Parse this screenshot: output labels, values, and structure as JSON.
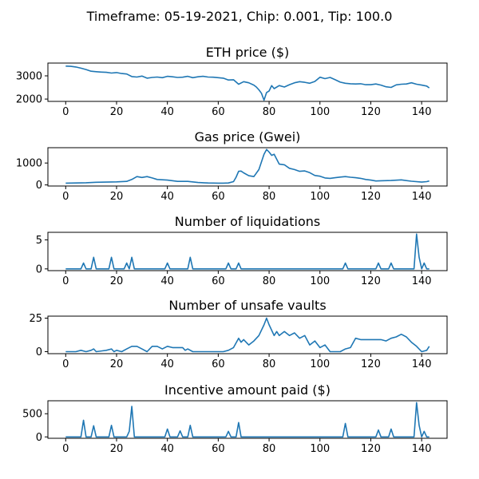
{
  "suptitle": "Timeframe: 05-19-2021, Chip: 0.001, Tip: 100.0",
  "colors": {
    "line": "#1f77b4",
    "axes": "#000000",
    "background": "#ffffff"
  },
  "chart_data": [
    {
      "type": "line",
      "title": "ETH price ($)",
      "xlim": [
        -7,
        150
      ],
      "ylim": [
        1900,
        3550
      ],
      "xticks": [
        0,
        20,
        40,
        60,
        80,
        100,
        120,
        140
      ],
      "yticks": [
        2000,
        3000
      ],
      "x": [
        0,
        2,
        4,
        6,
        8,
        10,
        12,
        14,
        16,
        18,
        20,
        22,
        24,
        26,
        28,
        30,
        32,
        34,
        36,
        38,
        40,
        42,
        44,
        46,
        48,
        50,
        52,
        54,
        56,
        58,
        60,
        62,
        64,
        66,
        68,
        70,
        72,
        74,
        75,
        76,
        77,
        78,
        79,
        80,
        81,
        82,
        84,
        86,
        88,
        90,
        92,
        94,
        96,
        98,
        100,
        102,
        104,
        106,
        108,
        110,
        112,
        114,
        116,
        118,
        120,
        122,
        124,
        126,
        128,
        130,
        132,
        134,
        136,
        138,
        140,
        142,
        143
      ],
      "values": [
        3420,
        3410,
        3380,
        3330,
        3270,
        3200,
        3180,
        3160,
        3150,
        3120,
        3140,
        3100,
        3080,
        2970,
        2950,
        2990,
        2900,
        2930,
        2950,
        2920,
        2980,
        2960,
        2930,
        2940,
        2980,
        2920,
        2960,
        2980,
        2950,
        2940,
        2920,
        2900,
        2820,
        2830,
        2640,
        2750,
        2700,
        2600,
        2520,
        2400,
        2250,
        1950,
        2280,
        2350,
        2580,
        2450,
        2580,
        2520,
        2620,
        2700,
        2750,
        2720,
        2680,
        2760,
        2940,
        2880,
        2930,
        2830,
        2730,
        2680,
        2660,
        2650,
        2660,
        2620,
        2620,
        2650,
        2600,
        2530,
        2500,
        2610,
        2640,
        2650,
        2700,
        2640,
        2600,
        2560,
        2480
      ]
    },
    {
      "type": "line",
      "title": "Gas price (Gwei)",
      "xlim": [
        -7,
        150
      ],
      "ylim": [
        -50,
        1700
      ],
      "xticks": [
        0,
        20,
        40,
        60,
        80,
        100,
        120,
        140
      ],
      "yticks": [
        0,
        1000
      ],
      "x": [
        0,
        4,
        8,
        12,
        16,
        20,
        24,
        26,
        28,
        30,
        32,
        34,
        36,
        40,
        44,
        48,
        52,
        56,
        60,
        62,
        64,
        66,
        67,
        68,
        69,
        70,
        72,
        74,
        76,
        78,
        79,
        80,
        81,
        82,
        84,
        86,
        88,
        90,
        92,
        94,
        96,
        98,
        100,
        102,
        104,
        106,
        108,
        110,
        112,
        114,
        116,
        118,
        120,
        122,
        124,
        128,
        132,
        136,
        140,
        142,
        143
      ],
      "values": [
        80,
        90,
        100,
        120,
        130,
        140,
        160,
        250,
        380,
        340,
        380,
        320,
        250,
        220,
        160,
        160,
        110,
        90,
        80,
        80,
        90,
        150,
        350,
        620,
        630,
        550,
        420,
        380,
        700,
        1400,
        1620,
        1500,
        1350,
        1400,
        950,
        920,
        760,
        700,
        620,
        640,
        560,
        430,
        400,
        320,
        300,
        330,
        360,
        380,
        350,
        330,
        300,
        250,
        220,
        180,
        190,
        200,
        230,
        170,
        130,
        150,
        180
      ]
    },
    {
      "type": "line",
      "title": "Number of liquidations",
      "xlim": [
        -7,
        150
      ],
      "ylim": [
        -0.3,
        6.3
      ],
      "xticks": [
        0,
        20,
        40,
        60,
        80,
        100,
        120,
        140
      ],
      "yticks": [
        0,
        5
      ],
      "x": [
        0,
        6,
        7,
        8,
        10,
        11,
        12,
        17,
        18,
        19,
        23,
        24,
        25,
        26,
        27,
        39,
        40,
        41,
        48,
        49,
        50,
        63,
        64,
        65,
        67,
        68,
        69,
        109,
        110,
        111,
        122,
        123,
        124,
        127,
        128,
        129,
        137,
        138,
        139,
        140,
        141,
        142,
        143
      ],
      "values": [
        0,
        0,
        1,
        0,
        0,
        2,
        0,
        0,
        2,
        0,
        0,
        1,
        0,
        2,
        0,
        0,
        1,
        0,
        0,
        2,
        0,
        0,
        1,
        0,
        0,
        1,
        0,
        0,
        1,
        0,
        0,
        1,
        0,
        0,
        1,
        0,
        0,
        6,
        2,
        0,
        1,
        0,
        0
      ]
    },
    {
      "type": "line",
      "title": "Number of unsafe vaults",
      "xlim": [
        -7,
        150
      ],
      "ylim": [
        -1.5,
        26.5
      ],
      "xticks": [
        0,
        20,
        40,
        60,
        80,
        100,
        120,
        140
      ],
      "yticks": [
        0,
        25
      ],
      "x": [
        0,
        4,
        6,
        8,
        10,
        11,
        12,
        16,
        18,
        19,
        20,
        22,
        24,
        26,
        28,
        30,
        32,
        34,
        36,
        38,
        40,
        42,
        44,
        46,
        47,
        48,
        50,
        52,
        56,
        60,
        62,
        64,
        66,
        68,
        69,
        70,
        72,
        74,
        76,
        78,
        79,
        80,
        82,
        83,
        84,
        86,
        88,
        90,
        92,
        94,
        96,
        98,
        100,
        102,
        104,
        106,
        108,
        110,
        112,
        114,
        116,
        118,
        120,
        122,
        124,
        126,
        128,
        130,
        132,
        134,
        136,
        138,
        140,
        142,
        143
      ],
      "values": [
        0,
        0,
        1,
        0,
        1,
        2,
        0,
        1,
        2,
        0,
        1,
        0,
        2,
        4,
        4,
        2,
        0,
        4,
        4,
        2,
        4,
        3,
        3,
        3,
        1,
        2,
        0,
        0,
        0,
        0,
        0,
        1,
        3,
        10,
        7,
        9,
        5,
        8,
        12,
        20,
        25,
        20,
        12,
        15,
        12,
        15,
        12,
        14,
        10,
        12,
        5,
        8,
        3,
        5,
        0,
        0,
        0,
        2,
        3,
        10,
        9,
        9,
        9,
        9,
        9,
        8,
        10,
        11,
        13,
        11,
        7,
        4,
        0,
        1,
        4
      ]
    },
    {
      "type": "line",
      "title": "Incentive amount paid ($)",
      "xlim": [
        -7,
        150
      ],
      "ylim": [
        -30,
        780
      ],
      "xticks": [
        0,
        20,
        40,
        60,
        80,
        100,
        120,
        140
      ],
      "yticks": [
        0,
        500
      ],
      "x": [
        0,
        6,
        7,
        8,
        10,
        11,
        12,
        17,
        18,
        19,
        24,
        25,
        26,
        27,
        39,
        40,
        41,
        44,
        45,
        46,
        48,
        49,
        50,
        63,
        64,
        65,
        67,
        68,
        69,
        109,
        110,
        111,
        122,
        123,
        124,
        127,
        128,
        129,
        137,
        138,
        139,
        140,
        141,
        142,
        143
      ],
      "values": [
        0,
        0,
        360,
        0,
        0,
        240,
        0,
        0,
        250,
        0,
        0,
        120,
        660,
        0,
        0,
        170,
        0,
        0,
        130,
        0,
        0,
        250,
        0,
        0,
        120,
        0,
        0,
        310,
        0,
        0,
        290,
        0,
        0,
        150,
        0,
        0,
        170,
        0,
        0,
        740,
        250,
        0,
        120,
        0,
        0
      ]
    }
  ]
}
